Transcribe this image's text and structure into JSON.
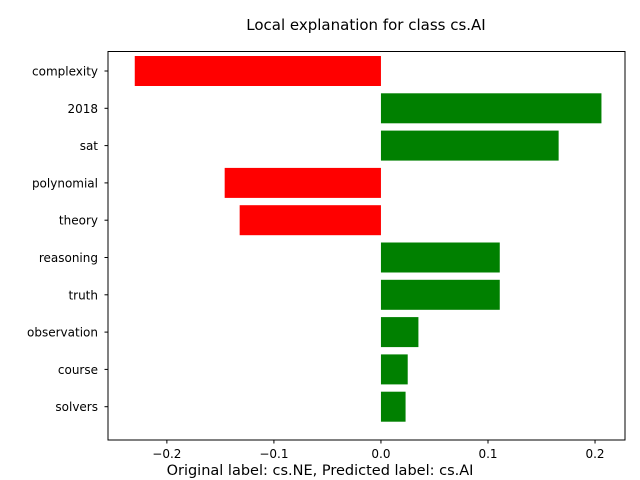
{
  "chart_data": {
    "type": "bar",
    "orientation": "horizontal",
    "title": "Local explanation for class cs.AI",
    "categories": [
      "complexity",
      "2018",
      "sat",
      "polynomial",
      "theory",
      "reasoning",
      "truth",
      "observation",
      "course",
      "solvers"
    ],
    "values": [
      -0.23,
      0.206,
      0.166,
      -0.146,
      -0.132,
      0.111,
      0.111,
      0.035,
      0.025,
      0.023
    ],
    "xlim": [
      -0.255,
      0.228
    ],
    "xticks": [
      -0.2,
      -0.1,
      0.0,
      0.1,
      0.2
    ],
    "xtick_labels": [
      "−0.2",
      "−0.1",
      "0.0",
      "0.1",
      "0.2"
    ],
    "grid": false,
    "colors": {
      "positive": "#008000",
      "negative": "#ff0000"
    }
  },
  "caption": "Original label: cs.NE, Predicted label: cs.AI"
}
